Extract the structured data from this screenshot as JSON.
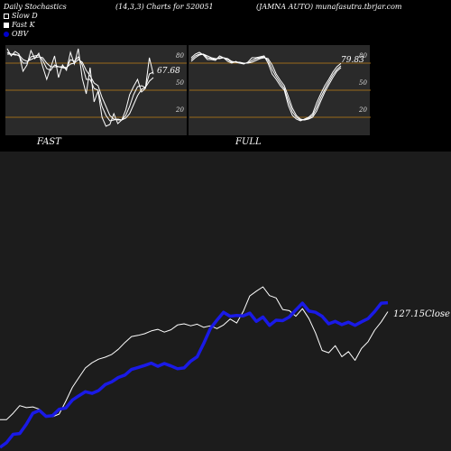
{
  "header": {
    "left": "Daily Stochastics",
    "center": "(14,3,3) Charts for 520051",
    "right": "(JAMNA AUTO) munafasutra.tbrjar.com"
  },
  "legend": [
    {
      "label": "Slow  D",
      "color": "#ffffff"
    },
    {
      "label": "Fast K",
      "color": "#ffffff"
    },
    {
      "label": "OBV",
      "color": "#0000cc"
    }
  ],
  "chart_data": [
    {
      "type": "line",
      "title": "FAST",
      "ylim": [
        0,
        100
      ],
      "levels": [
        20,
        50,
        80
      ],
      "level_labels": [
        "20",
        "50",
        "80"
      ],
      "value_label": "67.68",
      "series": [
        {
          "color": "#ffffff",
          "x": [
            0,
            1,
            2,
            3,
            4,
            5,
            6,
            7,
            8,
            9,
            10,
            11,
            12,
            13,
            14,
            15,
            16,
            17,
            18,
            19,
            20,
            21,
            22,
            23,
            24,
            25,
            26,
            27,
            28,
            29,
            30,
            31,
            32,
            33,
            34,
            35,
            36,
            37
          ],
          "values": [
            96,
            88,
            93,
            90,
            71,
            78,
            94,
            85,
            91,
            76,
            62,
            75,
            88,
            64,
            78,
            72,
            92,
            79,
            96,
            63,
            46,
            75,
            37,
            49,
            20,
            10,
            12,
            24,
            13,
            17,
            28,
            45,
            54,
            62,
            48,
            52,
            86,
            67.68
          ]
        },
        {
          "color": "#ffffff",
          "x": [
            0,
            1,
            2,
            3,
            4,
            5,
            6,
            7,
            8,
            9,
            10,
            11,
            12,
            13,
            14,
            15,
            16,
            17,
            18,
            19,
            20,
            21,
            22,
            23,
            24,
            25,
            26,
            27,
            28,
            29,
            30,
            31,
            32,
            33,
            34,
            35,
            36,
            37
          ],
          "values": [
            92,
            90,
            90,
            88,
            80,
            80,
            87,
            88,
            89,
            83,
            74,
            72,
            78,
            76,
            75,
            74,
            84,
            82,
            87,
            78,
            62,
            62,
            52,
            50,
            32,
            22,
            16,
            17,
            18,
            17,
            22,
            32,
            45,
            54,
            55,
            53,
            68,
            70
          ]
        },
        {
          "color": "#ffffff",
          "x": [
            0,
            1,
            2,
            3,
            4,
            5,
            6,
            7,
            8,
            9,
            10,
            11,
            12,
            13,
            14,
            15,
            16,
            17,
            18,
            19,
            20,
            21,
            22,
            23,
            24,
            25,
            26,
            27,
            28,
            29,
            30,
            31,
            32,
            33,
            34,
            35,
            36,
            37
          ],
          "values": [
            90,
            90,
            89,
            89,
            84,
            82,
            84,
            86,
            87,
            86,
            80,
            76,
            76,
            76,
            76,
            75,
            79,
            80,
            84,
            81,
            72,
            66,
            58,
            55,
            42,
            32,
            22,
            18,
            17,
            17,
            19,
            24,
            34,
            44,
            51,
            53,
            60,
            64
          ]
        }
      ]
    },
    {
      "type": "line",
      "title": "FULL",
      "ylim": [
        0,
        100
      ],
      "levels": [
        20,
        50,
        80
      ],
      "level_labels": [
        "20",
        "50",
        "80"
      ],
      "value_label": "79.83",
      "series": [
        {
          "color": "#ffffff",
          "x": [
            0,
            1,
            2,
            3,
            4,
            5,
            6,
            7,
            8,
            9,
            10,
            11,
            12,
            13,
            14,
            15,
            16,
            17,
            18,
            19,
            20,
            21,
            22,
            23,
            24,
            25,
            26,
            27,
            28,
            29,
            30,
            31,
            32,
            33,
            34,
            35,
            36,
            37
          ],
          "values": [
            86,
            90,
            92,
            89,
            84,
            84,
            83,
            88,
            86,
            82,
            80,
            82,
            80,
            79,
            81,
            86,
            86,
            87,
            88,
            80,
            68,
            62,
            55,
            50,
            33,
            22,
            18,
            16,
            18,
            20,
            24,
            36,
            46,
            55,
            62,
            70,
            76,
            79.83
          ]
        },
        {
          "color": "#ffffff",
          "x": [
            0,
            1,
            2,
            3,
            4,
            5,
            6,
            7,
            8,
            9,
            10,
            11,
            12,
            13,
            14,
            15,
            16,
            17,
            18,
            19,
            20,
            21,
            22,
            23,
            24,
            25,
            26,
            27,
            28,
            29,
            30,
            31,
            32,
            33,
            34,
            35,
            36,
            37
          ],
          "values": [
            84,
            88,
            90,
            90,
            86,
            85,
            84,
            86,
            86,
            84,
            81,
            81,
            80,
            80,
            80,
            83,
            85,
            86,
            87,
            83,
            73,
            65,
            58,
            52,
            38,
            26,
            20,
            17,
            17,
            19,
            22,
            31,
            42,
            51,
            59,
            67,
            73,
            77
          ]
        },
        {
          "color": "#ffffff",
          "x": [
            0,
            1,
            2,
            3,
            4,
            5,
            6,
            7,
            8,
            9,
            10,
            11,
            12,
            13,
            14,
            15,
            16,
            17,
            18,
            19,
            20,
            21,
            22,
            23,
            24,
            25,
            26,
            27,
            28,
            29,
            30,
            31,
            32,
            33,
            34,
            35,
            36,
            37
          ],
          "values": [
            82,
            86,
            89,
            90,
            88,
            86,
            85,
            85,
            86,
            85,
            82,
            81,
            81,
            80,
            80,
            81,
            83,
            85,
            86,
            85,
            78,
            68,
            61,
            55,
            43,
            30,
            22,
            18,
            17,
            18,
            20,
            27,
            38,
            48,
            56,
            64,
            71,
            75
          ]
        }
      ]
    },
    {
      "type": "line",
      "title": "",
      "value_label": "127.15",
      "value_suffix": "Close",
      "series": [
        {
          "name": "Close",
          "color": "#ffffff",
          "x": [
            0,
            1,
            2,
            3,
            4,
            5,
            6,
            7,
            8,
            9,
            10,
            11,
            12,
            13,
            14,
            15,
            16,
            17,
            18,
            19,
            20,
            21,
            22,
            23,
            24,
            25,
            26,
            27,
            28,
            29,
            30,
            31,
            32,
            33,
            34,
            35,
            36,
            37,
            38,
            39,
            40,
            41,
            42,
            43,
            44,
            45,
            46,
            47,
            48,
            49,
            50,
            51,
            52,
            53,
            54,
            55,
            56,
            57,
            58,
            59
          ],
          "values": [
            100.0,
            100.0,
            101.6,
            103.5,
            103.0,
            103.2,
            102.6,
            101.0,
            100.7,
            101.4,
            104.6,
            108.1,
            110.6,
            113.0,
            114.3,
            115.2,
            115.7,
            116.4,
            117.7,
            119.4,
            120.9,
            121.2,
            121.6,
            122.3,
            122.7,
            122.0,
            122.6,
            123.8,
            124.1,
            123.6,
            124.0,
            123.2,
            123.6,
            122.9,
            123.8,
            125.3,
            124.3,
            127.2,
            131.1,
            132.3,
            133.4,
            131.2,
            130.6,
            127.7,
            127.4,
            126.0,
            127.9,
            125.4,
            121.8,
            117.4,
            116.8,
            118.6,
            115.8,
            117.1,
            114.9,
            117.9,
            119.6,
            122.5,
            124.6,
            127.15
          ]
        },
        {
          "name": "OBV",
          "color": "#1a1ae6",
          "x": [
            0,
            1,
            2,
            3,
            4,
            5,
            6,
            7,
            8,
            9,
            10,
            11,
            12,
            13,
            14,
            15,
            16,
            17,
            18,
            19,
            20,
            21,
            22,
            23,
            24,
            25,
            26,
            27,
            28,
            29,
            30,
            31,
            32,
            33,
            34,
            35,
            36,
            37,
            38,
            39,
            40,
            41,
            42,
            43,
            44,
            45,
            46,
            47,
            48,
            49,
            50,
            51,
            52,
            53,
            54,
            55,
            56,
            57,
            58,
            59
          ],
          "values": [
            93.0,
            94.2,
            96.3,
            96.5,
            98.8,
            101.6,
            102.3,
            100.8,
            101.0,
            102.6,
            102.9,
            104.9,
            106.0,
            107.0,
            106.6,
            107.3,
            108.8,
            109.5,
            110.6,
            111.2,
            112.6,
            113.1,
            113.6,
            114.2,
            113.4,
            114.1,
            113.5,
            112.8,
            113.0,
            114.7,
            115.8,
            119.2,
            122.9,
            125.0,
            127.0,
            126.0,
            126.2,
            126.1,
            126.8,
            124.7,
            125.8,
            123.7,
            125.0,
            124.9,
            125.8,
            127.6,
            129.3,
            127.3,
            127.0,
            126.0,
            124.1,
            124.7,
            123.9,
            124.5,
            123.7,
            124.6,
            125.4,
            127.2,
            129.3,
            129.4
          ]
        }
      ]
    }
  ]
}
